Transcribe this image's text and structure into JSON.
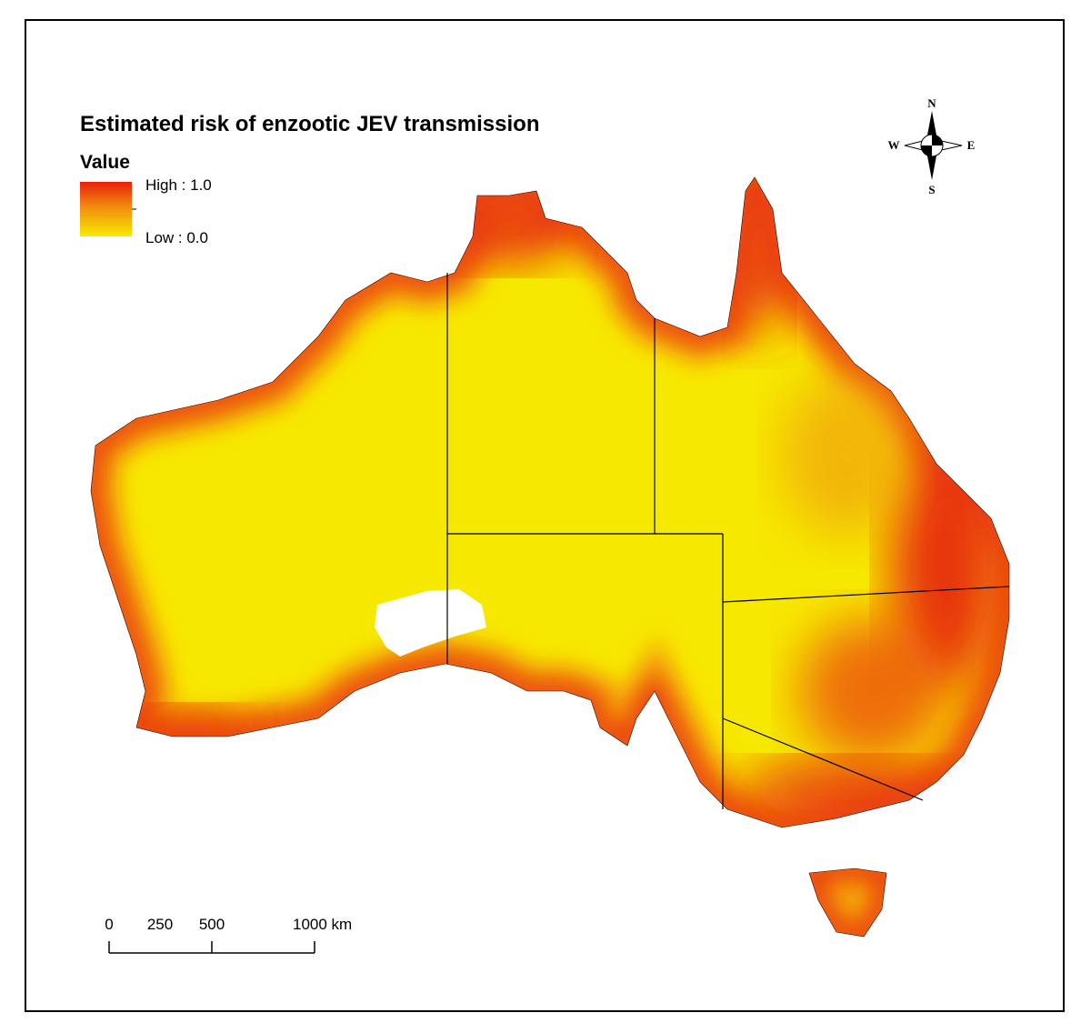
{
  "title": "Estimated risk of enzootic JEV transmission",
  "legend": {
    "title": "Value",
    "high_label": "High : 1.0",
    "low_label": "Low : 0.0"
  },
  "compass": {
    "north": "N",
    "south": "S",
    "east": "E",
    "west": "W"
  },
  "scale_bar": {
    "labels": [
      "0",
      "250",
      "500",
      "1000 km"
    ]
  }
}
